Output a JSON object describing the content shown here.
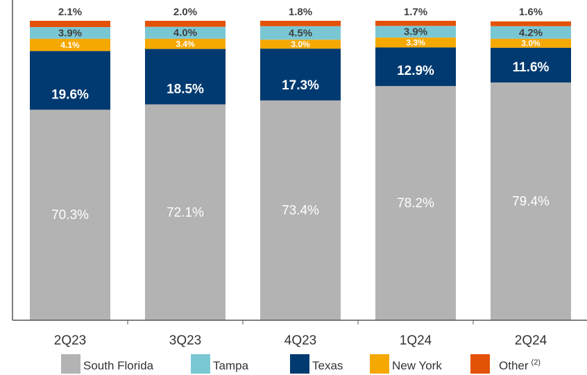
{
  "chart_data": {
    "type": "stacked_bar",
    "categories": [
      "2Q23",
      "3Q23",
      "4Q23",
      "1Q24",
      "2Q24"
    ],
    "ylim": [
      0,
      100
    ],
    "series": [
      {
        "name": "South Florida",
        "color": "#b3b3b3",
        "values": [
          70.3,
          72.1,
          73.4,
          78.2,
          79.4
        ],
        "value_labels": [
          "70.3%",
          "72.1%",
          "73.4%",
          "78.2%",
          "79.4%"
        ]
      },
      {
        "name": "Texas",
        "color": "#003a70",
        "values": [
          19.6,
          18.5,
          17.3,
          12.9,
          11.6
        ],
        "value_labels": [
          "19.6%",
          "18.5%",
          "17.3%",
          "12.9%",
          "11.6%"
        ]
      },
      {
        "name": "New York",
        "color": "#f5a800",
        "values": [
          4.1,
          3.4,
          3.0,
          3.3,
          3.0
        ],
        "value_labels": [
          "4.1%",
          "3.4%",
          "3.0%",
          "3.3%",
          "3.0%"
        ]
      },
      {
        "name": "Tampa",
        "color": "#7ac7d4",
        "values": [
          3.9,
          4.0,
          4.5,
          3.9,
          4.2
        ],
        "value_labels": [
          "3.9%",
          "4.0%",
          "4.5%",
          "3.9%",
          "4.2%"
        ]
      },
      {
        "name": "Other",
        "footnote_marker": "(2)",
        "color": "#e35205",
        "values": [
          2.1,
          2.0,
          1.8,
          1.7,
          1.6
        ],
        "value_labels": [
          "2.1%",
          "2.0%",
          "1.8%",
          "1.7%",
          "1.6%"
        ]
      }
    ],
    "legend_order": [
      0,
      3,
      1,
      2,
      4
    ]
  }
}
